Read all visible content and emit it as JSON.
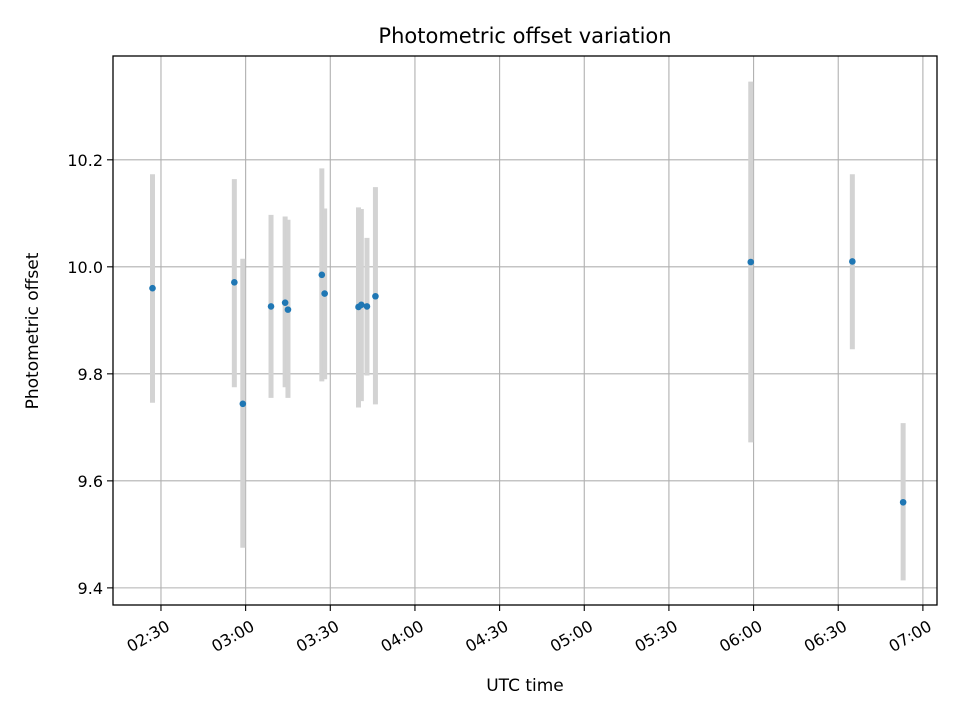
{
  "chart_data": {
    "type": "scatter",
    "title": "Photometric offset variation",
    "xlabel": "UTC time",
    "ylabel": "Photometric offset",
    "x_axis_kind": "time",
    "xlim": [
      "02:13",
      "07:05"
    ],
    "ylim": [
      9.368,
      10.394
    ],
    "x_ticks": [
      "02:30",
      "03:00",
      "03:30",
      "04:00",
      "04:30",
      "05:00",
      "05:30",
      "06:00",
      "06:30",
      "07:00"
    ],
    "y_ticks": [
      9.4,
      9.6,
      9.8,
      10.0,
      10.2
    ],
    "y_tick_labels": [
      "9.4",
      "9.6",
      "9.8",
      "10.0",
      "10.2"
    ],
    "grid": true,
    "point_color": "#1f77b4",
    "errorbar_color": "#d3d3d3",
    "points": [
      {
        "x": "02:27",
        "y": 9.96,
        "ylo": 9.746,
        "yhi": 10.173
      },
      {
        "x": "02:56",
        "y": 9.971,
        "ylo": 9.775,
        "yhi": 10.164
      },
      {
        "x": "02:59",
        "y": 9.744,
        "ylo": 9.475,
        "yhi": 10.015
      },
      {
        "x": "03:09",
        "y": 9.926,
        "ylo": 9.755,
        "yhi": 10.097
      },
      {
        "x": "03:14",
        "y": 9.933,
        "ylo": 9.775,
        "yhi": 10.094
      },
      {
        "x": "03:15",
        "y": 9.92,
        "ylo": 9.755,
        "yhi": 10.088
      },
      {
        "x": "03:27",
        "y": 9.985,
        "ylo": 9.786,
        "yhi": 10.184
      },
      {
        "x": "03:28",
        "y": 9.95,
        "ylo": 9.79,
        "yhi": 10.109
      },
      {
        "x": "03:40",
        "y": 9.925,
        "ylo": 9.737,
        "yhi": 10.111
      },
      {
        "x": "03:41",
        "y": 9.929,
        "ylo": 9.749,
        "yhi": 10.108
      },
      {
        "x": "03:43",
        "y": 9.926,
        "ylo": 9.797,
        "yhi": 10.054
      },
      {
        "x": "03:46",
        "y": 9.945,
        "ylo": 9.743,
        "yhi": 10.149
      },
      {
        "x": "05:59",
        "y": 10.009,
        "ylo": 9.672,
        "yhi": 10.346
      },
      {
        "x": "06:35",
        "y": 10.01,
        "ylo": 9.846,
        "yhi": 10.173
      },
      {
        "x": "06:53",
        "y": 9.56,
        "ylo": 9.414,
        "yhi": 9.708
      }
    ]
  }
}
